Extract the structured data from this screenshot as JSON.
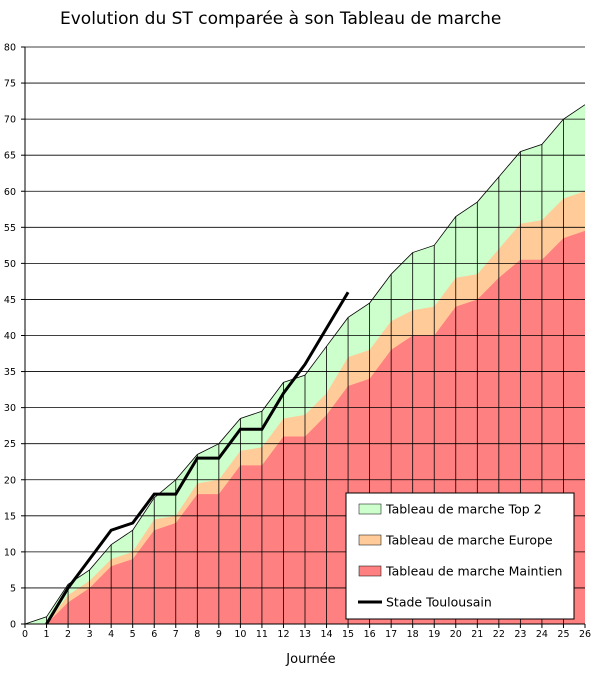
{
  "chart_data": {
    "type": "area",
    "title": "Evolution du ST comparée à son Tableau de marche",
    "xlabel": "Journée",
    "ylabel": "",
    "xlim": [
      0,
      26
    ],
    "ylim": [
      0,
      80
    ],
    "x_ticks": [
      0,
      1,
      2,
      3,
      4,
      5,
      6,
      7,
      8,
      9,
      10,
      11,
      12,
      13,
      14,
      15,
      16,
      17,
      18,
      19,
      20,
      21,
      22,
      23,
      24,
      25,
      26
    ],
    "y_ticks": [
      0,
      5,
      10,
      15,
      20,
      25,
      30,
      35,
      40,
      45,
      50,
      55,
      60,
      65,
      70,
      75,
      80
    ],
    "grid": "horizontal",
    "legend_position": "bottom-right",
    "series": [
      {
        "name": "Tableau de marche Top 2",
        "kind": "area",
        "color": "#ccffcc",
        "x": [
          0,
          1,
          2,
          3,
          4,
          5,
          6,
          7,
          8,
          9,
          10,
          11,
          12,
          13,
          14,
          15,
          16,
          17,
          18,
          19,
          20,
          21,
          22,
          23,
          24,
          25,
          26
        ],
        "values": [
          0,
          1,
          5.5,
          7.5,
          11,
          13,
          17.5,
          20,
          23.5,
          25,
          28.5,
          29.5,
          33.5,
          34.5,
          38.5,
          42.5,
          44.5,
          48.5,
          51.5,
          52.5,
          56.5,
          58.5,
          62,
          65.5,
          66.5,
          70,
          72
        ]
      },
      {
        "name": "Tableau de marche Europe",
        "kind": "area",
        "color": "#ffcc99",
        "x": [
          0,
          1,
          2,
          3,
          4,
          5,
          6,
          7,
          8,
          9,
          10,
          11,
          12,
          13,
          14,
          15,
          16,
          17,
          18,
          19,
          20,
          21,
          22,
          23,
          24,
          25,
          26
        ],
        "values": [
          0,
          0,
          4,
          6,
          9,
          10,
          14.5,
          15,
          19.5,
          20,
          24,
          24.5,
          28.5,
          29,
          32,
          37,
          38,
          42,
          43.5,
          44,
          48,
          48.5,
          52,
          55.5,
          56,
          59,
          60
        ]
      },
      {
        "name": "Tableau de marche Maintien",
        "kind": "area",
        "color": "#ff8080",
        "x": [
          0,
          1,
          2,
          3,
          4,
          5,
          6,
          7,
          8,
          9,
          10,
          11,
          12,
          13,
          14,
          15,
          16,
          17,
          18,
          19,
          20,
          21,
          22,
          23,
          24,
          25,
          26
        ],
        "values": [
          0,
          0,
          3,
          5,
          8,
          9,
          13,
          14,
          18,
          18,
          22,
          22,
          26,
          26,
          29,
          33,
          34,
          38,
          40,
          40,
          44,
          45,
          48,
          50.5,
          50.5,
          53.5,
          54.5
        ]
      },
      {
        "name": "Stade Toulousain",
        "kind": "line",
        "color": "#000000",
        "x": [
          1,
          2,
          3,
          4,
          5,
          6,
          7,
          8,
          9,
          10,
          11,
          12,
          13,
          14,
          15
        ],
        "values": [
          0,
          5,
          9,
          13,
          14,
          18,
          18,
          23,
          23,
          27,
          27,
          32,
          36,
          41,
          46
        ]
      }
    ]
  }
}
